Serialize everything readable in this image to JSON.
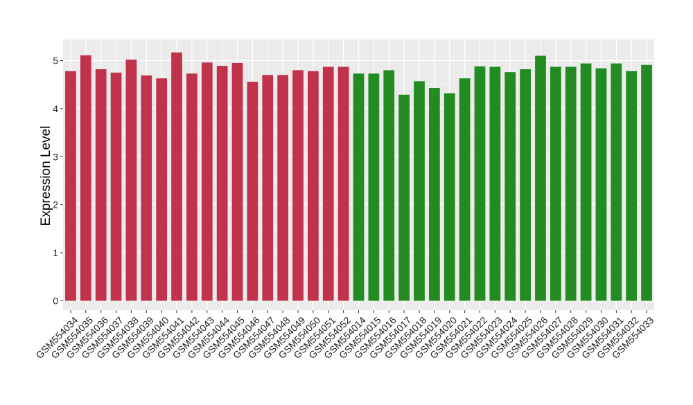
{
  "chart_data": {
    "type": "bar",
    "title": "",
    "xlabel": "",
    "ylabel": "Expression Level",
    "ylim": [
      -0.2,
      5.4
    ],
    "yticks": [
      0,
      1,
      2,
      3,
      4,
      5
    ],
    "ytick_labels": [
      "0",
      "1",
      "2",
      "3",
      "4",
      "5"
    ],
    "grid": true,
    "legend": "none",
    "colors": {
      "group_a": "#c0334a",
      "group_b": "#228b22",
      "panel": "#ebebeb",
      "grid": "#ffffff"
    },
    "categories": [
      "GSM554034",
      "GSM554035",
      "GSM554036",
      "GSM554037",
      "GSM554038",
      "GSM554039",
      "GSM554040",
      "GSM554041",
      "GSM554042",
      "GSM554043",
      "GSM554044",
      "GSM554045",
      "GSM554046",
      "GSM554047",
      "GSM554048",
      "GSM554049",
      "GSM554050",
      "GSM554051",
      "GSM554052",
      "GSM554014",
      "GSM554015",
      "GSM554016",
      "GSM554017",
      "GSM554018",
      "GSM554019",
      "GSM554020",
      "GSM554021",
      "GSM554022",
      "GSM554023",
      "GSM554024",
      "GSM554025",
      "GSM554026",
      "GSM554027",
      "GSM554028",
      "GSM554029",
      "GSM554030",
      "GSM554031",
      "GSM554032",
      "GSM554033"
    ],
    "values": [
      4.78,
      5.11,
      4.82,
      4.75,
      5.02,
      4.69,
      4.63,
      5.17,
      4.73,
      4.96,
      4.89,
      4.95,
      4.56,
      4.7,
      4.7,
      4.8,
      4.78,
      4.87,
      4.87,
      4.73,
      4.73,
      4.8,
      4.29,
      4.57,
      4.43,
      4.32,
      4.63,
      4.88,
      4.87,
      4.76,
      4.82,
      5.1,
      4.87,
      4.87,
      4.94,
      4.84,
      4.94,
      4.78,
      4.91
    ],
    "bar_groups": [
      "group_a",
      "group_a",
      "group_a",
      "group_a",
      "group_a",
      "group_a",
      "group_a",
      "group_a",
      "group_a",
      "group_a",
      "group_a",
      "group_a",
      "group_a",
      "group_a",
      "group_a",
      "group_a",
      "group_a",
      "group_a",
      "group_a",
      "group_b",
      "group_b",
      "group_b",
      "group_b",
      "group_b",
      "group_b",
      "group_b",
      "group_b",
      "group_b",
      "group_b",
      "group_b",
      "group_b",
      "group_b",
      "group_b",
      "group_b",
      "group_b",
      "group_b",
      "group_b",
      "group_b",
      "group_b"
    ]
  }
}
